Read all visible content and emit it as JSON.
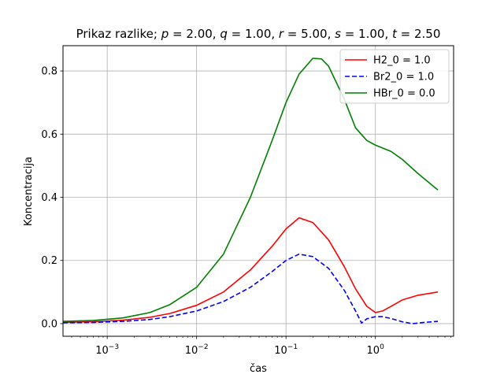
{
  "chart_data": {
    "type": "line",
    "title_plain": "Prikaz razlike; ",
    "title_params": [
      {
        "name": "p",
        "value": "2.00"
      },
      {
        "name": "q",
        "value": "1.00"
      },
      {
        "name": "r",
        "value": "5.00"
      },
      {
        "name": "s",
        "value": "1.00"
      },
      {
        "name": "t",
        "value": "2.50"
      }
    ],
    "xlabel": "čas",
    "ylabel": "Koncentracija",
    "x_scale": "log",
    "xlim": [
      0.00032,
      7.5
    ],
    "ylim": [
      -0.04,
      0.88
    ],
    "x_ticks": [
      {
        "value": 0.001,
        "base": "10",
        "exp": "−3"
      },
      {
        "value": 0.01,
        "base": "10",
        "exp": "−2"
      },
      {
        "value": 0.1,
        "base": "10",
        "exp": "−1"
      },
      {
        "value": 1,
        "base": "10",
        "exp": "0"
      }
    ],
    "y_ticks": [
      {
        "value": 0.0,
        "label": "0.0"
      },
      {
        "value": 0.2,
        "label": "0.2"
      },
      {
        "value": 0.4,
        "label": "0.4"
      },
      {
        "value": 0.6,
        "label": "0.6"
      },
      {
        "value": 0.8,
        "label": "0.8"
      }
    ],
    "grid": true,
    "legend_position": "top-right",
    "series": [
      {
        "name": "H2_0 = 1.0",
        "color": "#ff0000",
        "dash": "solid",
        "points": [
          [
            0.00032,
            0.004
          ],
          [
            0.0007,
            0.006
          ],
          [
            0.0015,
            0.011
          ],
          [
            0.003,
            0.02
          ],
          [
            0.005,
            0.032
          ],
          [
            0.01,
            0.058
          ],
          [
            0.02,
            0.1
          ],
          [
            0.04,
            0.17
          ],
          [
            0.07,
            0.245
          ],
          [
            0.1,
            0.3
          ],
          [
            0.14,
            0.335
          ],
          [
            0.2,
            0.32
          ],
          [
            0.3,
            0.265
          ],
          [
            0.45,
            0.18
          ],
          [
            0.6,
            0.11
          ],
          [
            0.8,
            0.055
          ],
          [
            1.0,
            0.035
          ],
          [
            1.2,
            0.04
          ],
          [
            1.5,
            0.055
          ],
          [
            2.0,
            0.075
          ],
          [
            3.0,
            0.09
          ],
          [
            5.0,
            0.1
          ]
        ]
      },
      {
        "name": " Br2_0 = 1.0",
        "color": "#0000ff",
        "dash": "dashed",
        "points": [
          [
            0.00032,
            0.003
          ],
          [
            0.0007,
            0.004
          ],
          [
            0.0015,
            0.007
          ],
          [
            0.003,
            0.013
          ],
          [
            0.005,
            0.022
          ],
          [
            0.01,
            0.04
          ],
          [
            0.02,
            0.07
          ],
          [
            0.04,
            0.115
          ],
          [
            0.07,
            0.165
          ],
          [
            0.1,
            0.2
          ],
          [
            0.14,
            0.22
          ],
          [
            0.2,
            0.212
          ],
          [
            0.3,
            0.175
          ],
          [
            0.45,
            0.105
          ],
          [
            0.6,
            0.04
          ],
          [
            0.7,
            0.002
          ],
          [
            0.8,
            0.015
          ],
          [
            1.0,
            0.022
          ],
          [
            1.2,
            0.022
          ],
          [
            1.5,
            0.016
          ],
          [
            2.0,
            0.006
          ],
          [
            2.6,
            0.0
          ],
          [
            3.5,
            0.004
          ],
          [
            5.0,
            0.007
          ]
        ]
      },
      {
        "name": "HBr_0 = 0.0",
        "color": "#008000",
        "dash": "solid",
        "points": [
          [
            0.00032,
            0.007
          ],
          [
            0.0007,
            0.01
          ],
          [
            0.0015,
            0.018
          ],
          [
            0.003,
            0.035
          ],
          [
            0.005,
            0.06
          ],
          [
            0.01,
            0.115
          ],
          [
            0.02,
            0.22
          ],
          [
            0.04,
            0.4
          ],
          [
            0.07,
            0.58
          ],
          [
            0.1,
            0.7
          ],
          [
            0.14,
            0.79
          ],
          [
            0.2,
            0.84
          ],
          [
            0.25,
            0.838
          ],
          [
            0.3,
            0.815
          ],
          [
            0.45,
            0.71
          ],
          [
            0.6,
            0.62
          ],
          [
            0.8,
            0.58
          ],
          [
            1.0,
            0.565
          ],
          [
            1.5,
            0.545
          ],
          [
            2.0,
            0.52
          ],
          [
            3.0,
            0.475
          ],
          [
            5.0,
            0.423
          ]
        ]
      }
    ]
  }
}
